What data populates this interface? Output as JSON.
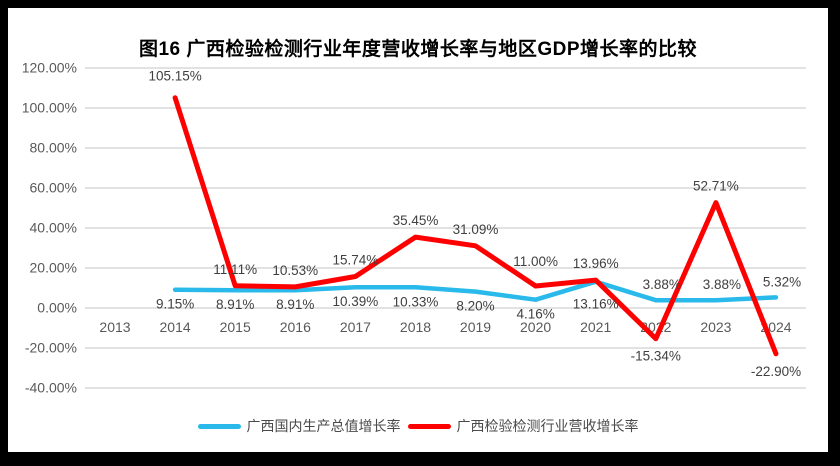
{
  "title": "图16 广西检验检测行业年度营收增长率与地区GDP增长率的比较",
  "colors": {
    "gdp_line": "#29B9EA",
    "revenue_line": "#FF0000",
    "gridline": "#D9D9D9",
    "tick_text": "#595959",
    "data_label_text": "#404040",
    "frame": "#000000",
    "panel_background": "#FFFFFF"
  },
  "legend": {
    "items": [
      {
        "label": "广西国内生产总值增长率",
        "color": "#29B9EA"
      },
      {
        "label": "广西检验检测行业营收增长率",
        "color": "#FF0000"
      }
    ]
  },
  "chart_data": {
    "type": "line",
    "title": "图16 广西检验检测行业年度营收增长率与地区GDP增长率的比较",
    "categories": [
      "2013",
      "2014",
      "2015",
      "2016",
      "2017",
      "2018",
      "2019",
      "2020",
      "2021",
      "2022",
      "2023",
      "2024"
    ],
    "series": [
      {
        "name": "广西国内生产总值增长率",
        "color": "#29B9EA",
        "values": [
          null,
          9.15,
          8.91,
          8.91,
          10.39,
          10.33,
          8.2,
          4.16,
          13.16,
          3.88,
          3.88,
          5.32
        ],
        "labels": [
          null,
          "9.15%",
          "8.91%",
          "8.91%",
          "10.39%",
          "10.33%",
          "8.20%",
          "4.16%",
          "13.16%",
          "3.88%",
          "3.88%",
          "5.32%"
        ],
        "label_side": [
          null,
          "below",
          "below",
          "below",
          "below",
          "below",
          "below",
          "below",
          "below",
          "above",
          "above",
          "above"
        ],
        "label_dy": [
          null,
          0,
          0,
          0,
          0,
          0,
          0,
          0,
          8,
          0,
          0,
          0
        ]
      },
      {
        "name": "广西检验检测行业营收增长率",
        "color": "#FF0000",
        "values": [
          null,
          105.15,
          11.11,
          10.53,
          15.74,
          35.45,
          31.09,
          11.0,
          13.96,
          -15.34,
          52.71,
          -22.9
        ],
        "labels": [
          null,
          "105.15%",
          "11.11%",
          "10.53%",
          "15.74%",
          "35.45%",
          "31.09%",
          "11.00%",
          "13.96%",
          "-15.34%",
          "52.71%",
          "-22.90%"
        ],
        "label_side": [
          null,
          "above",
          "above",
          "above",
          "above",
          "above",
          "above",
          "above",
          "above",
          "below",
          "above",
          "below"
        ],
        "label_dy": [
          null,
          -5,
          0,
          0,
          0,
          0,
          0,
          -8,
          0,
          0,
          0,
          0
        ]
      }
    ],
    "ylim": [
      -40,
      120
    ],
    "ytick_step": 20,
    "ytick_labels": [
      "120.00%",
      "100.00%",
      "80.00%",
      "60.00%",
      "40.00%",
      "20.00%",
      "0.00%",
      "-20.00%",
      "-40.00%"
    ],
    "xlabel": "",
    "ylabel": "",
    "grid": true,
    "legend_position": "bottom"
  }
}
